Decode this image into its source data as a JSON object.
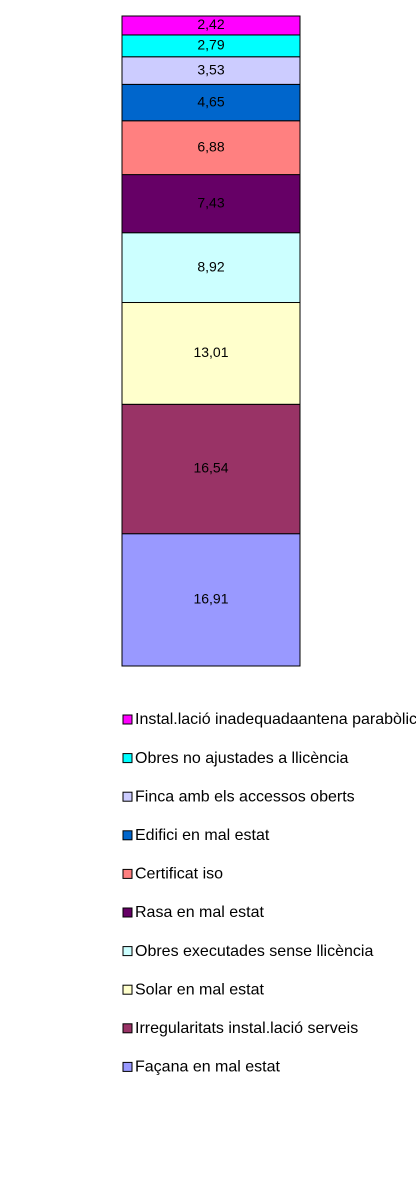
{
  "chart_data": {
    "type": "stacked-bar",
    "series": [
      {
        "name": "Instal.lació inadequadaantena parabòlica",
        "color": "#ff00ff",
        "values": [
          2.42
        ],
        "value_labels": [
          "2,42"
        ]
      },
      {
        "name": "Obres no ajustades a llicència",
        "color": "#00ffff",
        "values": [
          2.79
        ],
        "value_labels": [
          "2,79"
        ]
      },
      {
        "name": "Finca amb els accessos oberts",
        "color": "#ccccff",
        "values": [
          3.53
        ],
        "value_labels": [
          "3,53"
        ]
      },
      {
        "name": "Edifici en mal estat",
        "color": "#0066cc",
        "values": [
          4.65
        ],
        "value_labels": [
          "4,65"
        ]
      },
      {
        "name": "Certificat iso",
        "color": "#ff8080",
        "values": [
          6.88
        ],
        "value_labels": [
          "6,88"
        ]
      },
      {
        "name": "Rasa en mal estat",
        "color": "#660066",
        "values": [
          7.43
        ],
        "value_labels": [
          "7,43"
        ]
      },
      {
        "name": "Obres executades sense llicència",
        "color": "#ccffff",
        "values": [
          8.92
        ],
        "value_labels": [
          "8,92"
        ]
      },
      {
        "name": "Solar en mal estat",
        "color": "#ffffcc",
        "values": [
          13.01
        ],
        "value_labels": [
          "13,01"
        ]
      },
      {
        "name": "Irregularitats instal.lació serveis",
        "color": "#993366",
        "values": [
          16.54
        ],
        "value_labels": [
          "16,54"
        ]
      },
      {
        "name": "Façana en mal estat",
        "color": "#9999ff",
        "values": [
          16.91
        ],
        "value_labels": [
          "16,91"
        ]
      }
    ]
  }
}
